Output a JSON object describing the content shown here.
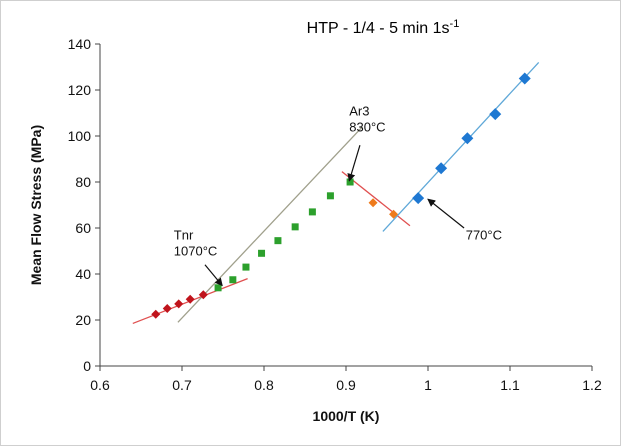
{
  "chart_data": {
    "type": "scatter",
    "title_main": "HTP - 1/4 - 5 min  1s",
    "title_sup": "-1",
    "xlabel": "1000/T (K)",
    "ylabel": "Mean Flow Stress (MPa)",
    "xlim": [
      0.6,
      1.2
    ],
    "ylim": [
      0,
      140
    ],
    "x_ticks": [
      "0.6",
      "0.7",
      "0.8",
      "0.9",
      "1",
      "1.1",
      "1.2"
    ],
    "y_ticks": [
      "0",
      "20",
      "40",
      "60",
      "80",
      "100",
      "120",
      "140"
    ],
    "grid": false,
    "series": [
      {
        "color": "#c0141c",
        "marker": "diamond",
        "points": [
          [
            0.668,
            22.5
          ],
          [
            0.682,
            25.0
          ],
          [
            0.696,
            27.0
          ],
          [
            0.71,
            29.0
          ],
          [
            0.726,
            31.0
          ]
        ]
      },
      {
        "color": "#2ca02c",
        "marker": "square",
        "points": [
          [
            0.744,
            34.0
          ],
          [
            0.762,
            37.5
          ],
          [
            0.778,
            43.0
          ],
          [
            0.797,
            49.0
          ],
          [
            0.817,
            54.5
          ],
          [
            0.838,
            60.5
          ],
          [
            0.859,
            67.0
          ],
          [
            0.881,
            74.0
          ],
          [
            0.905,
            80.0
          ]
        ]
      },
      {
        "color": "#ee7a1c",
        "marker": "diamond",
        "points": [
          [
            0.933,
            71.0
          ],
          [
            0.958,
            66.0
          ]
        ]
      },
      {
        "color": "#1e78d2",
        "marker": "diamond",
        "points": [
          [
            0.988,
            73.0
          ],
          [
            1.016,
            86.0
          ],
          [
            1.048,
            99.0
          ],
          [
            1.082,
            109.5
          ],
          [
            1.118,
            125.0
          ]
        ]
      }
    ],
    "fit_lines": [
      {
        "color": "#e05050",
        "from": [
          0.64,
          18.5
        ],
        "to": [
          0.78,
          38.0
        ]
      },
      {
        "color": "#a0a08c",
        "from": [
          0.695,
          19.0
        ],
        "to": [
          0.92,
          104.0
        ]
      },
      {
        "color": "#e05050",
        "from": [
          0.895,
          84.5
        ],
        "to": [
          0.978,
          61.0
        ]
      },
      {
        "color": "#5fa8d8",
        "from": [
          0.945,
          58.5
        ],
        "to": [
          1.135,
          132.0
        ]
      }
    ],
    "annotations": [
      {
        "lines": [
          "Tnr",
          "1070°C"
        ],
        "text_at": [
          0.69,
          55.0
        ],
        "arrow_from": [
          0.728,
          44.0
        ],
        "arrow_to": [
          0.749,
          35.0
        ]
      },
      {
        "lines": [
          "Ar3",
          "830°C"
        ],
        "text_at": [
          0.904,
          109.0
        ],
        "arrow_from": [
          0.917,
          96.0
        ],
        "arrow_to": [
          0.904,
          80.5
        ]
      },
      {
        "lines": [
          "770°C"
        ],
        "text_at": [
          1.046,
          55.0
        ],
        "arrow_from": [
          1.044,
          60.0
        ],
        "arrow_to": [
          1.0,
          72.5
        ]
      }
    ]
  }
}
